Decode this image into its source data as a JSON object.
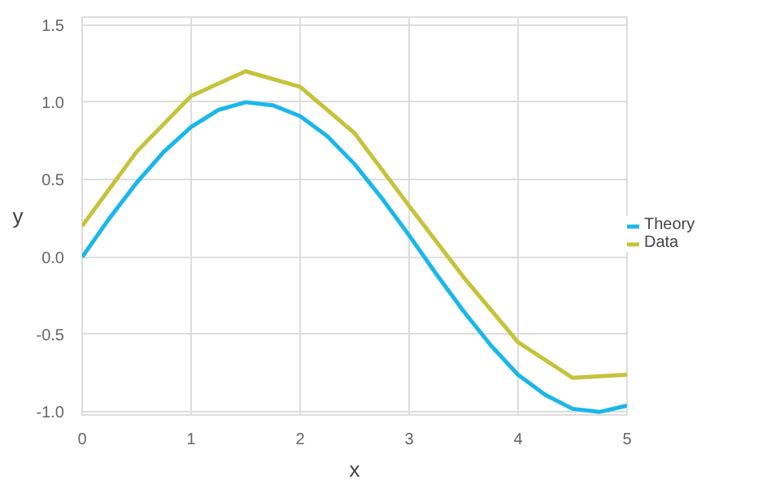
{
  "chart_data": {
    "type": "line",
    "xlabel": "x",
    "ylabel": "y",
    "xlim": [
      0,
      5
    ],
    "ylim": [
      -1.02,
      1.55
    ],
    "xticks": [
      0,
      1,
      2,
      3,
      4,
      5
    ],
    "yticks": [
      {
        "value": -1,
        "label": "-1.0"
      },
      {
        "value": -0.5,
        "label": "-0.5"
      },
      {
        "value": 0,
        "label": "0.0"
      },
      {
        "value": 0.5,
        "label": "0.5"
      },
      {
        "value": 1,
        "label": "1.0"
      },
      {
        "value": 1.5,
        "label": "1.5"
      }
    ],
    "grid": true,
    "legend": "right",
    "series": [
      {
        "name": "Theory",
        "color": "#1ab7ea",
        "x": [
          0,
          0.25,
          0.5,
          0.75,
          1,
          1.25,
          1.5,
          1.75,
          2,
          2.25,
          2.5,
          2.75,
          3,
          3.25,
          3.5,
          3.75,
          4,
          4.25,
          4.5,
          4.75,
          5
        ],
        "values": [
          0,
          0.25,
          0.48,
          0.68,
          0.84,
          0.95,
          1.0,
          0.98,
          0.91,
          0.78,
          0.6,
          0.38,
          0.14,
          -0.11,
          -0.35,
          -0.57,
          -0.76,
          -0.89,
          -0.98,
          -1.0,
          -0.96
        ]
      },
      {
        "name": "Data",
        "color": "#c5c33a",
        "x": [
          0,
          0.5,
          1,
          1.5,
          2,
          2.5,
          3,
          3.5,
          4,
          4.5,
          5
        ],
        "values": [
          0.2,
          0.68,
          1.04,
          1.2,
          1.1,
          0.8,
          0.33,
          -0.13,
          -0.55,
          -0.78,
          -0.76
        ]
      }
    ]
  }
}
